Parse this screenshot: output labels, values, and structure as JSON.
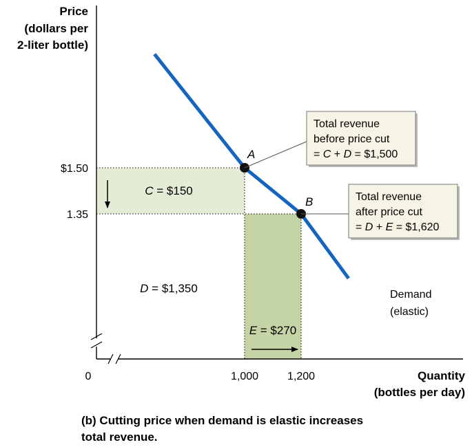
{
  "chart_data": {
    "type": "line",
    "y_axis_label": [
      "Price",
      "(dollars per",
      "2-liter bottle)"
    ],
    "x_axis_label": [
      "Quantity",
      "(bottles per day)"
    ],
    "origin_label": "0",
    "x_ticks": [
      {
        "value": 1000,
        "label": "1,000"
      },
      {
        "value": 1200,
        "label": "1,200"
      }
    ],
    "y_ticks": [
      {
        "value": 1.5,
        "label": "$1.50"
      },
      {
        "value": 1.35,
        "label": "1.35"
      }
    ],
    "axes_broken": true,
    "grid": false,
    "series": [
      {
        "name": "Demand (elastic)",
        "label_lines": [
          "Demand",
          "(elastic)"
        ],
        "color": "#1565c0",
        "points": [
          {
            "x": 681,
            "y": 1.87
          },
          {
            "x": 1000,
            "y": 1.5
          },
          {
            "x": 1200,
            "y": 1.35
          },
          {
            "x": 1368,
            "y": 1.14
          }
        ]
      }
    ],
    "points": [
      {
        "name": "A",
        "x": 1000,
        "y": 1.5
      },
      {
        "name": "B",
        "x": 1200,
        "y": 1.35
      }
    ],
    "areas": [
      {
        "id": "C",
        "label": "C = $150",
        "x0": 0,
        "x1": 1000,
        "y0": 1.35,
        "y1": 1.5,
        "color": "#e5ecd5"
      },
      {
        "id": "D",
        "label": "D = $1,350",
        "x0": 0,
        "x1": 1000,
        "y0": 0,
        "y1": 1.35,
        "color": "#ffffff"
      },
      {
        "id": "E",
        "label": "E = $270",
        "x0": 1000,
        "x1": 1200,
        "y0": 0,
        "y1": 1.35,
        "color": "#c4d4a4"
      }
    ],
    "annotations": [
      {
        "point": "A",
        "lines": [
          "Total revenue",
          "before price cut",
          "= C + D = $1,500"
        ]
      },
      {
        "point": "B",
        "lines": [
          "Total revenue",
          "after price cut",
          "= D + E = $1,620"
        ]
      }
    ],
    "arrows": [
      {
        "direction": "down",
        "meaning": "price cut"
      },
      {
        "direction": "right",
        "meaning": "quantity increase"
      }
    ],
    "caption": [
      "(b) Cutting price when demand is elastic increases",
      "total revenue."
    ]
  }
}
